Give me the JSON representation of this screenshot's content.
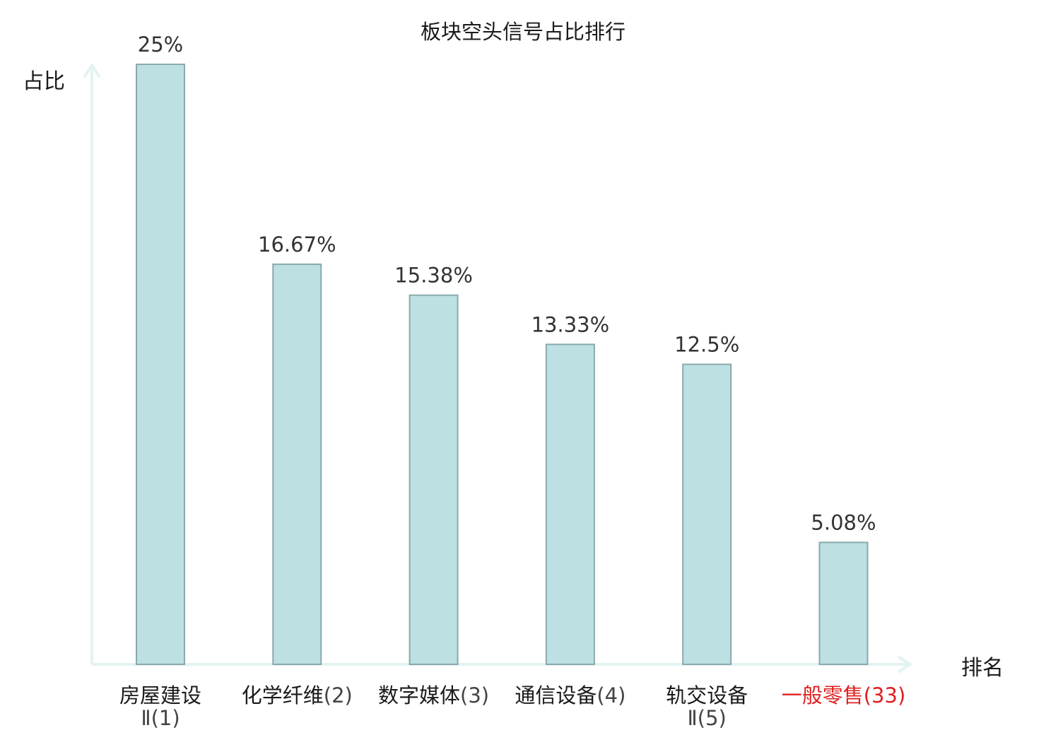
{
  "chart_data": {
    "type": "bar",
    "title": "板块空头信号占比排行",
    "ylabel": "占比",
    "xlabel": "排名",
    "ylim": [
      0,
      25
    ],
    "grid": false,
    "categories": [
      {
        "name": "房屋建设",
        "rank": "Ⅱ(1)",
        "wrapped": true,
        "highlight": false
      },
      {
        "name": "化学纤维",
        "rank": "(2)",
        "wrapped": false,
        "highlight": false
      },
      {
        "name": "数字媒体",
        "rank": "(3)",
        "wrapped": false,
        "highlight": false
      },
      {
        "name": "通信设备",
        "rank": "(4)",
        "wrapped": false,
        "highlight": false
      },
      {
        "name": "轨交设备",
        "rank": "Ⅱ(5)",
        "wrapped": true,
        "highlight": false
      },
      {
        "name": "一般零售",
        "rank": "(33)",
        "wrapped": false,
        "highlight": true
      }
    ],
    "values": [
      25,
      16.67,
      15.38,
      13.33,
      12.5,
      5.08
    ],
    "value_labels": [
      "25%",
      "16.67%",
      "15.38%",
      "13.33%",
      "12.5%",
      "5.08%"
    ]
  },
  "colors": {
    "bar_fill": "#bde0e3",
    "bar_stroke": "#8aa9ac",
    "axis": "#e3f3f1",
    "text": "#1a1a1a",
    "value_text": "#333333",
    "highlight_text": "#e02020"
  }
}
